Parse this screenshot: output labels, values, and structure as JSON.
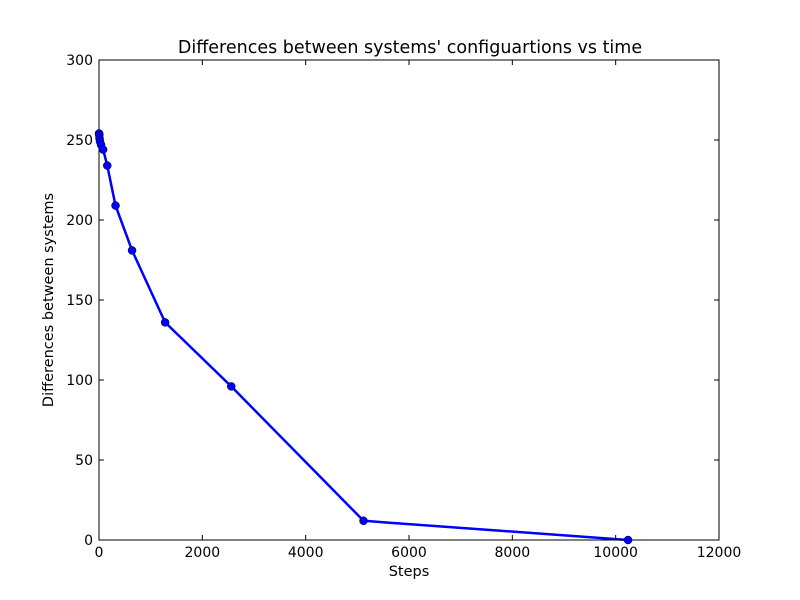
{
  "chart_data": {
    "type": "line",
    "title": "Differences between systems' configuartions vs time",
    "xlabel": "Steps",
    "ylabel": "Differences between systems",
    "xlim": [
      0,
      12000
    ],
    "ylim": [
      0,
      300
    ],
    "xticks": [
      0,
      2000,
      4000,
      6000,
      8000,
      10000,
      12000
    ],
    "yticks": [
      0,
      50,
      100,
      150,
      200,
      250,
      300
    ],
    "grid": false,
    "series": [
      {
        "color": "#0000ff",
        "marker": "circle",
        "x": [
          1,
          2,
          5,
          10,
          20,
          40,
          80,
          160,
          320,
          640,
          1280,
          2560,
          5120,
          10240
        ],
        "y": [
          254,
          254,
          253,
          251,
          249,
          247,
          244,
          234,
          209,
          181,
          136,
          96,
          12,
          0
        ]
      }
    ]
  }
}
